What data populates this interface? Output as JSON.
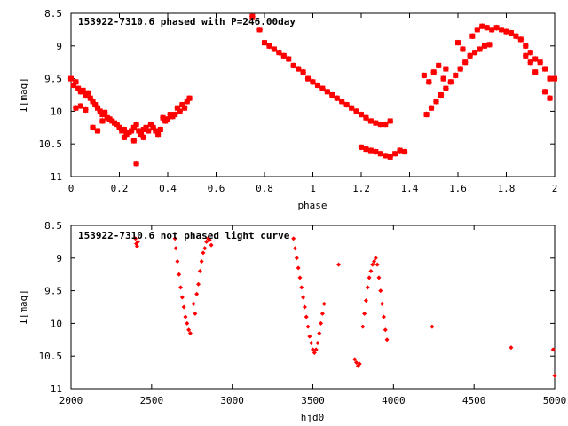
{
  "chart_data": [
    {
      "type": "scatter",
      "title": "153922-7310.6 phased with P=246.00day",
      "xlabel": "phase",
      "ylabel": "I[mag]",
      "xlim": [
        0,
        2
      ],
      "ylim": [
        11,
        8.5
      ],
      "y_inverted": true,
      "grid": false,
      "marker_color": "#ff0000",
      "marker": "star",
      "x_ticks": [
        "0",
        "0.2",
        "0.4",
        "0.6",
        "0.8",
        "1",
        "1.2",
        "1.4",
        "1.6",
        "1.8",
        "2"
      ],
      "y_ticks": [
        "8.5",
        "9",
        "9.5",
        "10",
        "10.5",
        "11"
      ],
      "x_tick_values": [
        0,
        0.2,
        0.4,
        0.6,
        0.8,
        1,
        1.2,
        1.4,
        1.6,
        1.8,
        2
      ],
      "y_tick_values": [
        8.5,
        9,
        9.5,
        10,
        10.5,
        11
      ],
      "series": [
        {
          "points": [
            [
              0.0,
              9.5
            ],
            [
              0.01,
              9.6
            ],
            [
              0.02,
              9.55
            ],
            [
              0.03,
              9.65
            ],
            [
              0.04,
              9.7
            ],
            [
              0.05,
              9.68
            ],
            [
              0.06,
              9.75
            ],
            [
              0.07,
              9.72
            ],
            [
              0.08,
              9.8
            ],
            [
              0.09,
              9.85
            ],
            [
              0.1,
              9.9
            ],
            [
              0.11,
              9.95
            ],
            [
              0.12,
              10.0
            ],
            [
              0.13,
              10.05
            ],
            [
              0.14,
              10.02
            ],
            [
              0.15,
              10.1
            ],
            [
              0.16,
              10.12
            ],
            [
              0.17,
              10.15
            ],
            [
              0.18,
              10.18
            ],
            [
              0.19,
              10.2
            ],
            [
              0.2,
              10.25
            ],
            [
              0.21,
              10.3
            ],
            [
              0.22,
              10.28
            ],
            [
              0.23,
              10.35
            ],
            [
              0.24,
              10.32
            ],
            [
              0.25,
              10.3
            ],
            [
              0.26,
              10.25
            ],
            [
              0.27,
              10.2
            ],
            [
              0.28,
              10.3
            ],
            [
              0.29,
              10.35
            ],
            [
              0.3,
              10.28
            ],
            [
              0.31,
              10.25
            ],
            [
              0.32,
              10.3
            ],
            [
              0.33,
              10.2
            ],
            [
              0.34,
              10.25
            ],
            [
              0.35,
              10.3
            ],
            [
              0.36,
              10.35
            ],
            [
              0.37,
              10.28
            ],
            [
              0.38,
              10.1
            ],
            [
              0.39,
              10.15
            ],
            [
              0.4,
              10.12
            ],
            [
              0.41,
              10.05
            ],
            [
              0.42,
              10.08
            ],
            [
              0.43,
              10.05
            ],
            [
              0.44,
              9.95
            ],
            [
              0.45,
              10.0
            ],
            [
              0.46,
              9.9
            ],
            [
              0.47,
              9.95
            ],
            [
              0.48,
              9.85
            ],
            [
              0.49,
              9.8
            ],
            [
              0.02,
              9.95
            ],
            [
              0.04,
              9.92
            ],
            [
              0.06,
              9.98
            ],
            [
              0.09,
              10.25
            ],
            [
              0.11,
              10.3
            ],
            [
              0.13,
              10.15
            ],
            [
              0.22,
              10.4
            ],
            [
              0.26,
              10.45
            ],
            [
              0.27,
              10.8
            ],
            [
              0.3,
              10.4
            ],
            [
              0.75,
              8.55
            ],
            [
              0.78,
              8.75
            ],
            [
              0.8,
              8.95
            ],
            [
              0.82,
              9.0
            ],
            [
              0.84,
              9.05
            ],
            [
              0.86,
              9.1
            ],
            [
              0.88,
              9.15
            ],
            [
              0.9,
              9.2
            ],
            [
              0.92,
              9.3
            ],
            [
              0.94,
              9.35
            ],
            [
              0.96,
              9.4
            ],
            [
              0.98,
              9.5
            ],
            [
              1.0,
              9.55
            ],
            [
              1.02,
              9.6
            ],
            [
              1.04,
              9.65
            ],
            [
              1.06,
              9.7
            ],
            [
              1.08,
              9.75
            ],
            [
              1.1,
              9.8
            ],
            [
              1.12,
              9.85
            ],
            [
              1.14,
              9.9
            ],
            [
              1.16,
              9.95
            ],
            [
              1.18,
              10.0
            ],
            [
              1.2,
              10.05
            ],
            [
              1.22,
              10.1
            ],
            [
              1.24,
              10.15
            ],
            [
              1.26,
              10.18
            ],
            [
              1.28,
              10.2
            ],
            [
              1.3,
              10.2
            ],
            [
              1.32,
              10.15
            ],
            [
              1.2,
              10.55
            ],
            [
              1.22,
              10.58
            ],
            [
              1.24,
              10.6
            ],
            [
              1.26,
              10.62
            ],
            [
              1.28,
              10.65
            ],
            [
              1.3,
              10.68
            ],
            [
              1.32,
              10.7
            ],
            [
              1.34,
              10.65
            ],
            [
              1.36,
              10.6
            ],
            [
              1.38,
              10.62
            ],
            [
              1.46,
              9.45
            ],
            [
              1.48,
              9.55
            ],
            [
              1.5,
              9.4
            ],
            [
              1.52,
              9.3
            ],
            [
              1.54,
              9.5
            ],
            [
              1.55,
              9.35
            ],
            [
              1.47,
              10.05
            ],
            [
              1.49,
              9.95
            ],
            [
              1.51,
              9.85
            ],
            [
              1.53,
              9.75
            ],
            [
              1.55,
              9.65
            ],
            [
              1.57,
              9.55
            ],
            [
              1.59,
              9.45
            ],
            [
              1.61,
              9.35
            ],
            [
              1.63,
              9.25
            ],
            [
              1.65,
              9.15
            ],
            [
              1.67,
              9.1
            ],
            [
              1.69,
              9.05
            ],
            [
              1.71,
              9.0
            ],
            [
              1.73,
              8.98
            ],
            [
              1.66,
              8.85
            ],
            [
              1.68,
              8.75
            ],
            [
              1.7,
              8.7
            ],
            [
              1.72,
              8.72
            ],
            [
              1.74,
              8.75
            ],
            [
              1.76,
              8.72
            ],
            [
              1.78,
              8.75
            ],
            [
              1.8,
              8.78
            ],
            [
              1.82,
              8.8
            ],
            [
              1.84,
              8.85
            ],
            [
              1.86,
              8.9
            ],
            [
              1.88,
              9.0
            ],
            [
              1.9,
              9.1
            ],
            [
              1.92,
              9.2
            ],
            [
              1.94,
              9.25
            ],
            [
              1.96,
              9.35
            ],
            [
              1.98,
              9.5
            ],
            [
              2.0,
              9.5
            ],
            [
              1.6,
              8.95
            ],
            [
              1.62,
              9.05
            ],
            [
              1.88,
              9.15
            ],
            [
              1.9,
              9.25
            ],
            [
              1.92,
              9.4
            ],
            [
              1.96,
              9.7
            ],
            [
              1.98,
              9.8
            ]
          ]
        }
      ]
    },
    {
      "type": "scatter",
      "title": "153922-7310.6 not phased light curve",
      "xlabel": "hjd0",
      "ylabel": "I[mag]",
      "xlim": [
        2000,
        5000
      ],
      "ylim": [
        11,
        8.5
      ],
      "y_inverted": true,
      "grid": false,
      "marker_color": "#ff0000",
      "marker": "diamond",
      "x_ticks": [
        "2000",
        "2500",
        "3000",
        "3500",
        "4000",
        "4500",
        "5000"
      ],
      "y_ticks": [
        "8.5",
        "9",
        "9.5",
        "10",
        "10.5",
        "11"
      ],
      "x_tick_values": [
        2000,
        2500,
        3000,
        3500,
        4000,
        4500,
        5000
      ],
      "y_tick_values": [
        8.5,
        9,
        9.5,
        10,
        10.5,
        11
      ],
      "series": [
        {
          "points": [
            [
              2400,
              8.7
            ],
            [
              2405,
              8.78
            ],
            [
              2410,
              8.82
            ],
            [
              2415,
              8.75
            ],
            [
              2645,
              8.7
            ],
            [
              2650,
              8.85
            ],
            [
              2660,
              9.05
            ],
            [
              2670,
              9.25
            ],
            [
              2680,
              9.45
            ],
            [
              2690,
              9.6
            ],
            [
              2700,
              9.75
            ],
            [
              2710,
              9.9
            ],
            [
              2720,
              10.0
            ],
            [
              2730,
              10.1
            ],
            [
              2740,
              10.15
            ],
            [
              2760,
              9.7
            ],
            [
              2770,
              9.85
            ],
            [
              2780,
              9.55
            ],
            [
              2790,
              9.4
            ],
            [
              2800,
              9.2
            ],
            [
              2810,
              9.05
            ],
            [
              2820,
              8.92
            ],
            [
              2830,
              8.85
            ],
            [
              2840,
              8.75
            ],
            [
              2850,
              8.7
            ],
            [
              2860,
              8.72
            ],
            [
              2870,
              8.8
            ],
            [
              3380,
              8.7
            ],
            [
              3390,
              8.85
            ],
            [
              3400,
              9.0
            ],
            [
              3410,
              9.15
            ],
            [
              3420,
              9.3
            ],
            [
              3430,
              9.45
            ],
            [
              3440,
              9.6
            ],
            [
              3450,
              9.75
            ],
            [
              3460,
              9.9
            ],
            [
              3470,
              10.05
            ],
            [
              3480,
              10.2
            ],
            [
              3490,
              10.3
            ],
            [
              3500,
              10.4
            ],
            [
              3510,
              10.45
            ],
            [
              3520,
              10.4
            ],
            [
              3530,
              10.3
            ],
            [
              3540,
              10.15
            ],
            [
              3550,
              10.0
            ],
            [
              3560,
              9.85
            ],
            [
              3570,
              9.7
            ],
            [
              3660,
              9.1
            ],
            [
              3760,
              10.55
            ],
            [
              3770,
              10.6
            ],
            [
              3780,
              10.65
            ],
            [
              3790,
              10.62
            ],
            [
              3810,
              10.05
            ],
            [
              3820,
              9.85
            ],
            [
              3830,
              9.65
            ],
            [
              3840,
              9.45
            ],
            [
              3850,
              9.3
            ],
            [
              3860,
              9.2
            ],
            [
              3870,
              9.1
            ],
            [
              3880,
              9.05
            ],
            [
              3890,
              9.0
            ],
            [
              3900,
              9.1
            ],
            [
              3910,
              9.3
            ],
            [
              3920,
              9.5
            ],
            [
              3930,
              9.7
            ],
            [
              3940,
              9.9
            ],
            [
              3950,
              10.1
            ],
            [
              3960,
              10.25
            ],
            [
              4240,
              10.05
            ],
            [
              4730,
              10.37
            ],
            [
              4990,
              10.4
            ],
            [
              5000,
              10.8
            ]
          ]
        }
      ]
    }
  ]
}
